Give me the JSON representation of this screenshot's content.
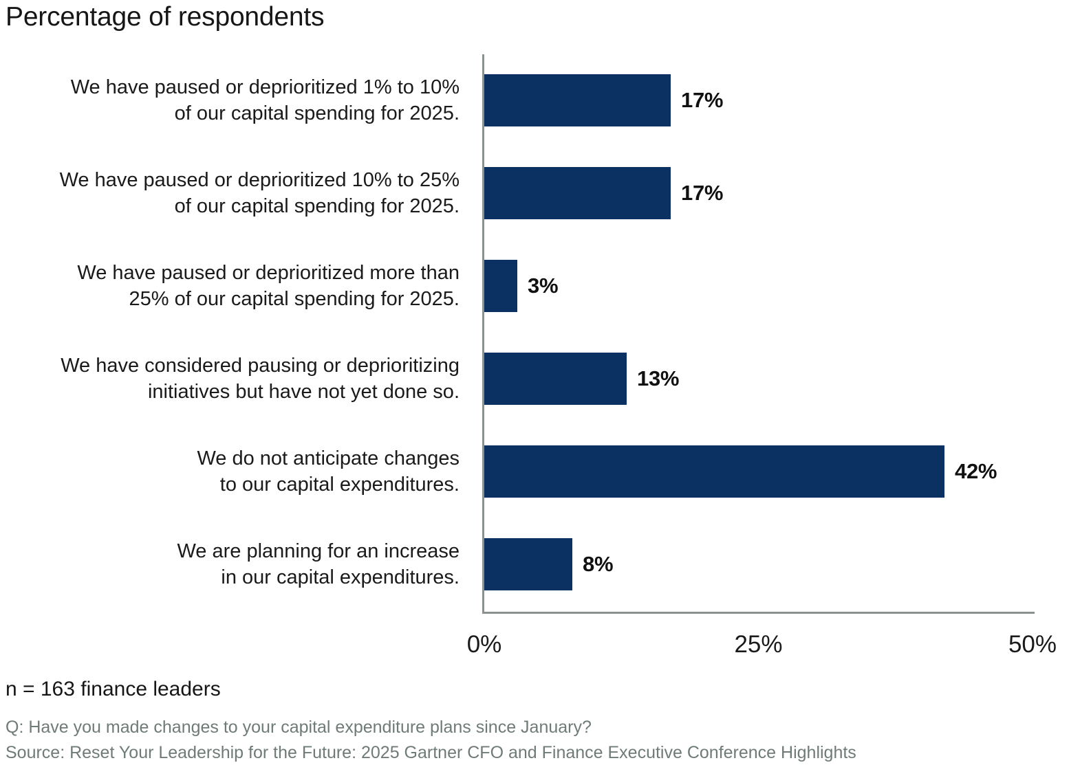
{
  "title": "Percentage of respondents",
  "chart_data": {
    "type": "bar",
    "orientation": "horizontal",
    "title": "Percentage of respondents",
    "categories": [
      "We have paused or deprioritized 1% to 10%\nof our capital spending for 2025.",
      "We have paused or deprioritized 10% to 25%\nof our capital spending for 2025.",
      "We have paused or deprioritized more than\n25% of our capital spending for 2025.",
      "We have considered pausing or deprioritizing\ninitiatives but have not yet done so.",
      "We do not anticipate changes\nto our capital expenditures.",
      "We are planning for an increase\nin our capital expenditures."
    ],
    "values": [
      17,
      17,
      3,
      13,
      42,
      8
    ],
    "value_labels": [
      "17%",
      "17%",
      "3%",
      "13%",
      "42%",
      "8%"
    ],
    "xlabel": "",
    "ylabel": "",
    "xlim": [
      0,
      50
    ],
    "x_ticks": [
      {
        "label": "0%",
        "value": 0
      },
      {
        "label": "25%",
        "value": 25
      },
      {
        "label": "50%",
        "value": 50
      }
    ],
    "grid": false,
    "legend": "none",
    "bar_color": "#0a3161",
    "axis_color": "#8a9290"
  },
  "footer": {
    "sample_size": "n = 163 finance leaders",
    "question": "Q: Have you made changes to your capital expenditure plans since January?",
    "source": "Source: Reset Your Leadership for the Future: 2025 Gartner CFO and Finance Executive Conference Highlights"
  }
}
